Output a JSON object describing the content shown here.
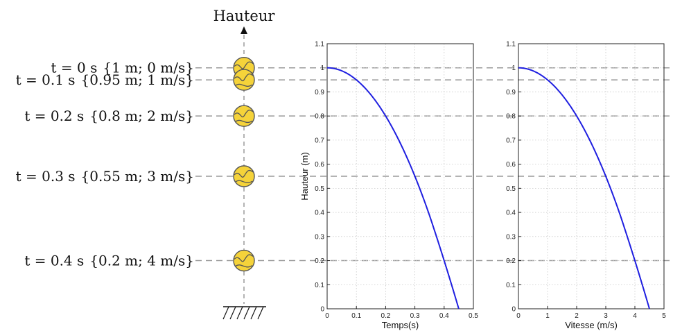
{
  "fall_diagram": {
    "axis_title": "Hauteur",
    "frames": [
      {
        "t_label": "t = 0 s",
        "state_label": "{1 m; 0 m/s}",
        "t": 0.0,
        "height": 1.0,
        "speed": 0
      },
      {
        "t_label": "t = 0.1 s",
        "state_label": "{0.95 m; 1 m/s}",
        "t": 0.1,
        "height": 0.95,
        "speed": 1
      },
      {
        "t_label": "t = 0.2 s",
        "state_label": "{0.8 m; 2 m/s}",
        "t": 0.2,
        "height": 0.8,
        "speed": 2
      },
      {
        "t_label": "t = 0.3 s",
        "state_label": "{0.55 m; 3 m/s}",
        "t": 0.3,
        "height": 0.55,
        "speed": 3
      },
      {
        "t_label": "t = 0.4 s",
        "state_label": "{0.2 m; 4 m/s}",
        "t": 0.4,
        "height": 0.2,
        "speed": 4
      }
    ],
    "ball_color": "#f5d33a",
    "guide_color": "#9a9a9a"
  },
  "chart_data": [
    {
      "type": "line",
      "xlabel": "Temps(s)",
      "ylabel": "Hauteur (m)",
      "xlim": [
        0,
        0.5
      ],
      "ylim": [
        0,
        1.1
      ],
      "xticks": [
        "0",
        "0.1",
        "0.2",
        "0.3",
        "0.4",
        "0.5"
      ],
      "yticks": [
        "0",
        "0.1",
        "0.2",
        "0.3",
        "0.4",
        "0.5",
        "0.6",
        "0.7",
        "0.8",
        "0.9",
        "1",
        "1.1"
      ],
      "grid": true,
      "series": [
        {
          "color": "#1f1fe0",
          "x": [
            0,
            0.05,
            0.1,
            0.15,
            0.2,
            0.25,
            0.3,
            0.35,
            0.4,
            0.45
          ],
          "y": [
            1.0,
            0.9875,
            0.95,
            0.8875,
            0.8,
            0.6875,
            0.55,
            0.3875,
            0.2,
            0.0
          ]
        }
      ]
    },
    {
      "type": "line",
      "xlabel": "Vitesse (m/s)",
      "ylabel": "",
      "xlim": [
        0,
        5
      ],
      "ylim": [
        0,
        1.1
      ],
      "xticks": [
        "0",
        "1",
        "2",
        "3",
        "4",
        "5"
      ],
      "yticks": [
        "0",
        "0.1",
        "0.2",
        "0.3",
        "0.4",
        "0.5",
        "0.6",
        "0.7",
        "0.8",
        "0.9",
        "1",
        "1.1"
      ],
      "grid": true,
      "series": [
        {
          "color": "#1f1fe0",
          "x": [
            0,
            0.5,
            1,
            1.5,
            2,
            2.5,
            3,
            3.5,
            4,
            4.5
          ],
          "y": [
            1.0,
            0.9875,
            0.95,
            0.8875,
            0.8,
            0.6875,
            0.55,
            0.3875,
            0.2,
            0.0
          ]
        }
      ]
    }
  ]
}
